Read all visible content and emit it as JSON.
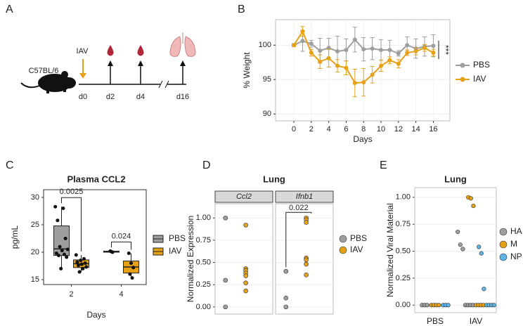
{
  "schematic": {
    "panel_label": "A",
    "mouse": "C57BL/6",
    "treatment": "IAV",
    "timepoints": [
      "d0",
      "d2",
      "d4",
      "d16"
    ]
  },
  "chart_data": [
    {
      "type": "line",
      "panel_label": "B",
      "y_label": "% Weight",
      "x_label": "Days",
      "x": [
        0,
        1,
        2,
        3,
        4,
        5,
        6,
        7,
        8,
        9,
        10,
        11,
        12,
        13,
        14,
        15,
        16
      ],
      "series": [
        {
          "name": "PBS",
          "color": "#9e9e9e",
          "values": [
            100,
            100.6,
            100.2,
            99.2,
            99.6,
            99.1,
            99.3,
            100.8,
            99.4,
            99.5,
            99.3,
            99.3,
            98.8,
            100.0,
            99.5,
            99.8,
            99.9
          ],
          "errors": [
            0.2,
            1.5,
            0.5,
            1.8,
            1.4,
            2.2,
            1.6,
            1.8,
            1.7,
            1.6,
            1.5,
            1.4,
            0.4,
            1.2,
            1.4,
            1.4,
            1.6
          ]
        },
        {
          "name": "IAV",
          "color": "#e6a117",
          "values": [
            100,
            102.0,
            98.9,
            97.6,
            98.1,
            97.0,
            96.7,
            94.5,
            94.6,
            95.7,
            97.0,
            97.8,
            97.3,
            98.9,
            99.1,
            99.6,
            98.9
          ],
          "errors": [
            0.2,
            0.7,
            0.5,
            1.0,
            1.3,
            0.9,
            1.0,
            2.0,
            2.0,
            1.2,
            0.8,
            0.5,
            0.6,
            0.4,
            0.5,
            0.5,
            0.5
          ]
        }
      ],
      "xlim": [
        -2.1,
        17.9
      ],
      "xticks": [
        0,
        2,
        4,
        6,
        8,
        10,
        12,
        14,
        16
      ],
      "ylim": [
        89,
        103.7
      ],
      "yticks": [
        90,
        95,
        100
      ],
      "grid": true,
      "legend": "right",
      "annotation": "***"
    },
    {
      "type": "box",
      "panel_label": "C",
      "title": "Plasma CCL2",
      "y_label": "pg/mL",
      "x_label": "Days",
      "categories": [
        "2",
        "4"
      ],
      "series": [
        {
          "name": "PBS",
          "color": "#9e9e9e",
          "boxes": [
            {
              "min": 17.0,
              "q1": 19.4,
              "median": 20.6,
              "q3": 24.8,
              "max": 28.3
            },
            {
              "min": 20.0,
              "q1": 20.0,
              "median": 20.1,
              "q3": 20.2,
              "max": 20.2
            }
          ],
          "points": [
            [
              28.3,
              28.0,
              25.8,
              22.5,
              21.0,
              20.5,
              20.3,
              19.8,
              19.6,
              19.4,
              19.1,
              17.0
            ],
            [
              20.2,
              20.1,
              20.0
            ]
          ]
        },
        {
          "name": "IAV",
          "color": "#e6a117",
          "boxes": [
            {
              "min": 16.4,
              "q1": 17.2,
              "median": 17.9,
              "q3": 18.6,
              "max": 19.5
            },
            {
              "min": 15.3,
              "q1": 16.2,
              "median": 17.3,
              "q3": 18.4,
              "max": 19.8
            }
          ],
          "points": [
            [
              19.5,
              18.8,
              18.5,
              18.2,
              18.0,
              17.8,
              17.6,
              17.3,
              17.0,
              16.4
            ],
            [
              19.8,
              18.0,
              17.2,
              16.0,
              15.3
            ]
          ]
        }
      ],
      "ylim": [
        14.1,
        31.4
      ],
      "yticks": [
        15,
        20,
        25,
        30
      ],
      "annotations": [
        "0.0025",
        "0.024"
      ]
    },
    {
      "type": "dot",
      "panel_label": "D",
      "title": "Lung",
      "y_label": "Normalized Expression",
      "facets": [
        "Ccl2",
        "Ifnb1"
      ],
      "series": [
        {
          "name": "PBS",
          "color": "#9e9e9e",
          "values": [
            [
              1.0,
              0.3,
              0.0
            ],
            [
              0.4,
              0.1,
              0.0
            ]
          ]
        },
        {
          "name": "IAV",
          "color": "#e6a117",
          "values": [
            [
              0.92,
              0.43,
              0.41,
              0.38,
              0.35,
              0.27,
              0.18
            ],
            [
              1.0,
              0.98,
              0.95,
              0.55,
              0.53,
              0.48,
              0.36
            ]
          ]
        }
      ],
      "ylim": [
        -0.08,
        1.16
      ],
      "yticks": [
        {
          "value": 0,
          "label": "0.00"
        },
        {
          "value": 0.25,
          "label": "0.25"
        },
        {
          "value": 0.5,
          "label": "0.50"
        },
        {
          "value": 0.75,
          "label": "0.75"
        },
        {
          "value": 1,
          "label": "1.00"
        }
      ],
      "annotation": "0.022"
    },
    {
      "type": "dot",
      "panel_label": "E",
      "title": "Lung",
      "y_label": "Normalized Viral Material",
      "categories": [
        "PBS",
        "IAV"
      ],
      "series": [
        {
          "name": "HA",
          "color": "#9e9e9e",
          "values": [
            [
              0,
              0,
              0
            ],
            [
              0.68,
              0.56,
              0.52,
              0,
              0,
              0,
              0
            ]
          ]
        },
        {
          "name": "M",
          "color": "#e6a117",
          "values": [
            [
              0,
              0,
              0,
              0
            ],
            [
              1.0,
              0.99,
              0.92,
              0,
              0,
              0,
              0
            ]
          ]
        },
        {
          "name": "NP",
          "color": "#5bb5e6",
          "values": [
            [
              0,
              0,
              0
            ],
            [
              0.54,
              0.48,
              0.15,
              0,
              0,
              0,
              0
            ]
          ]
        }
      ],
      "ylim": [
        -0.07,
        1.09
      ],
      "yticks": [
        {
          "value": 0,
          "label": "0.00"
        },
        {
          "value": 0.25,
          "label": "0.25"
        },
        {
          "value": 0.5,
          "label": "0.50"
        },
        {
          "value": 0.75,
          "label": "0.75"
        },
        {
          "value": 1,
          "label": "1.00"
        }
      ]
    }
  ]
}
